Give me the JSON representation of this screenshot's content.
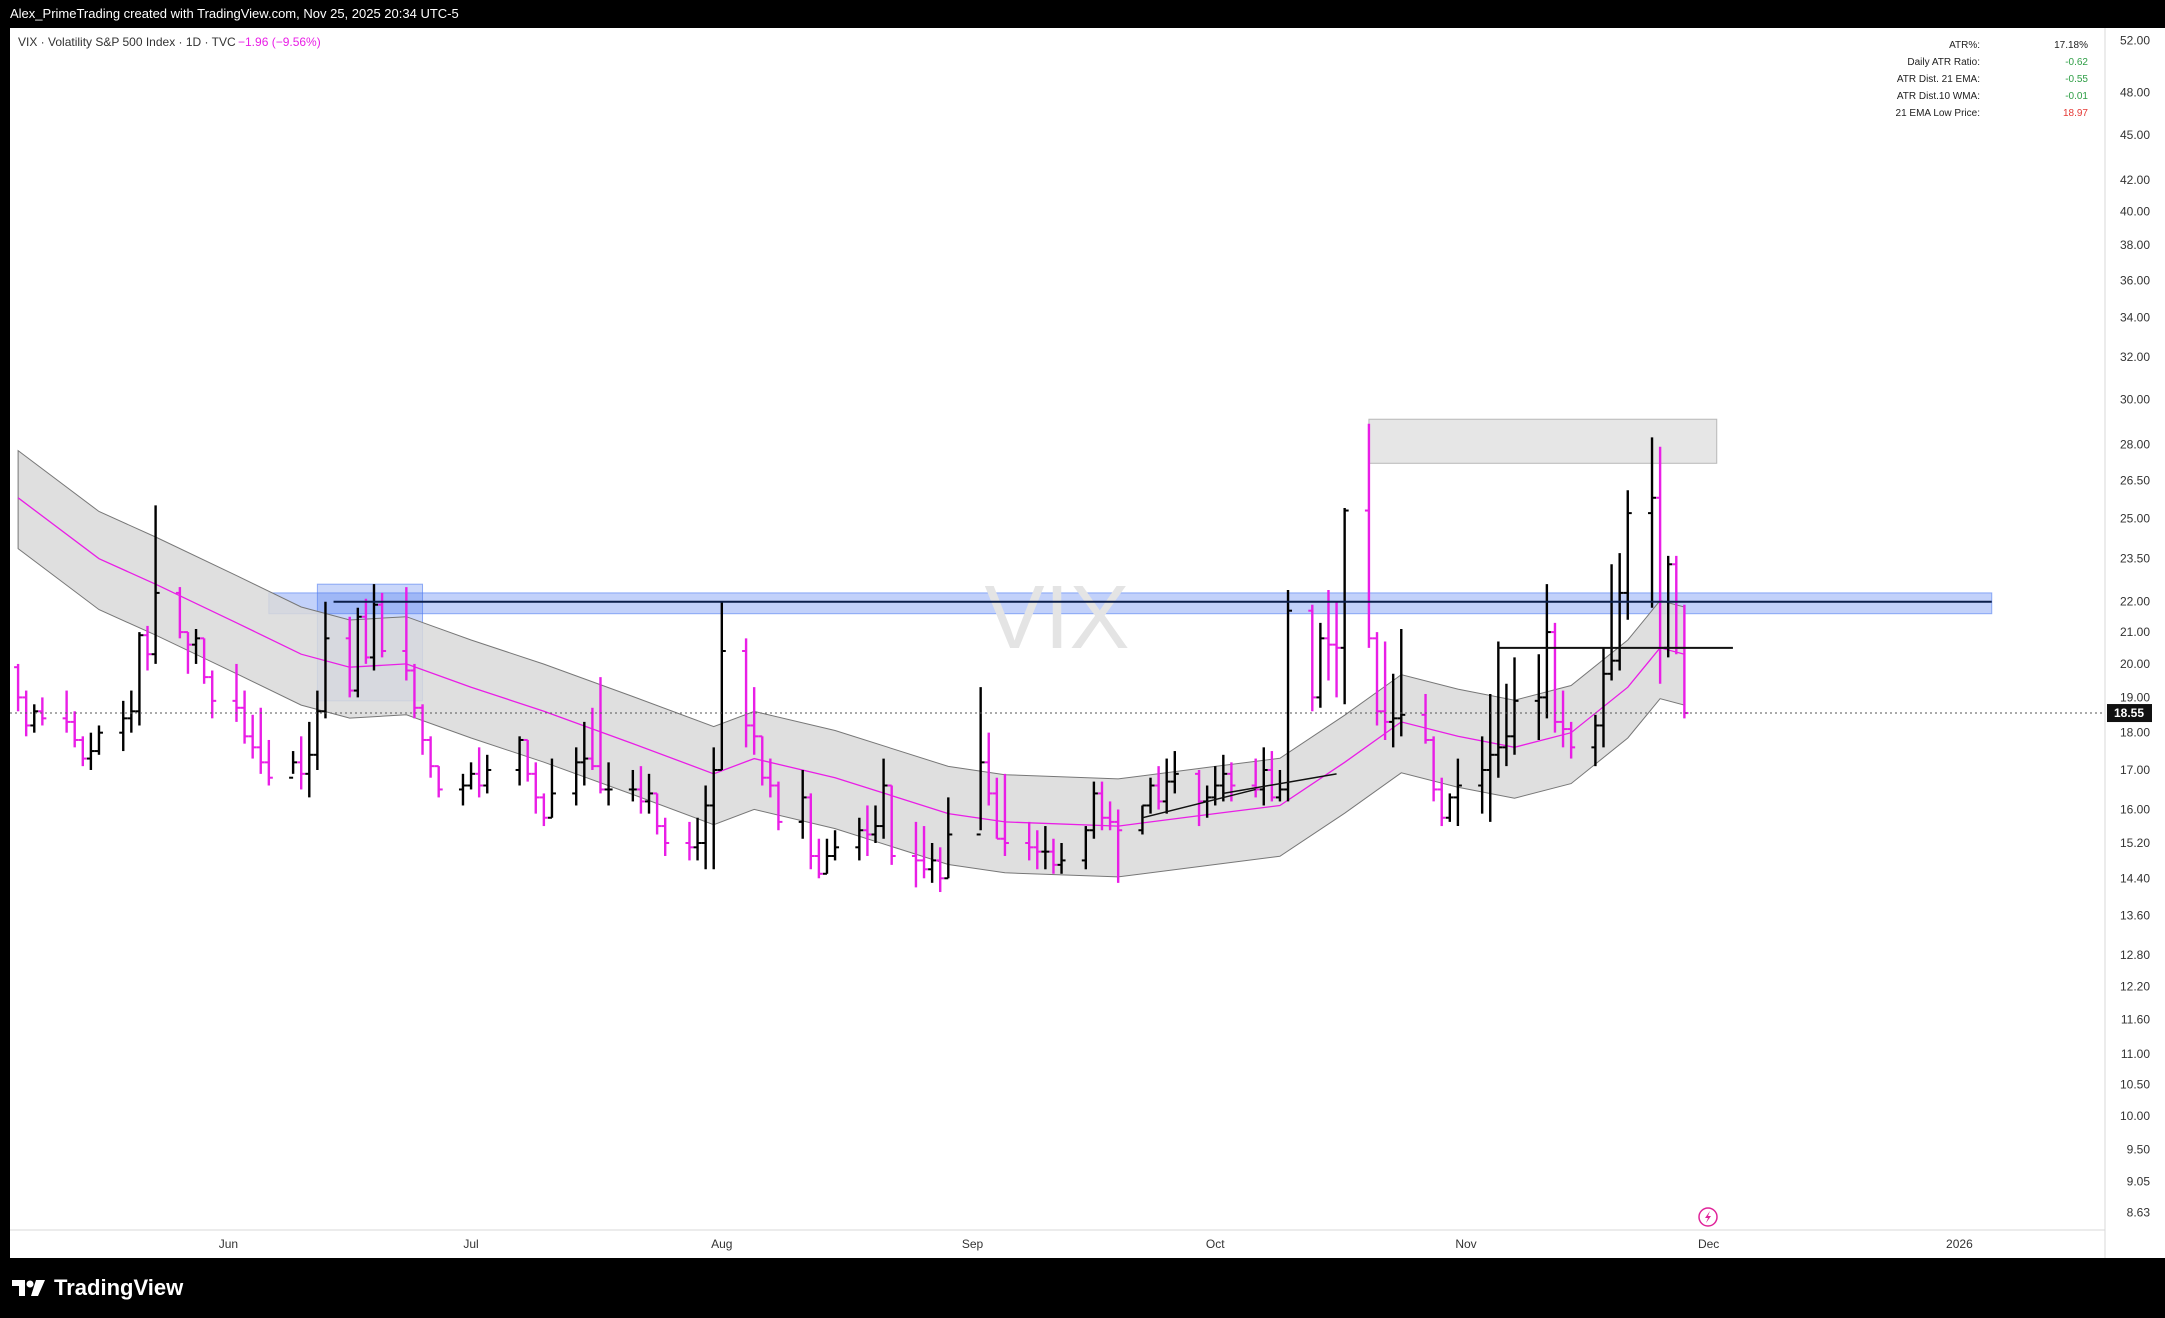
{
  "header": {
    "credit": "Alex_PrimeTrading created with TradingView.com, Nov 25, 2025 20:34 UTC-5"
  },
  "legend": {
    "symbol_line": "VIX · Volatility S&P 500 Index · 1D · TVC",
    "change": "−1.96 (−9.56%)"
  },
  "watermark": "VIX",
  "stats": [
    {
      "label": "ATR%:",
      "value": "17.18%",
      "color": "#222222"
    },
    {
      "label": "Daily ATR Ratio:",
      "value": "-0.62",
      "color": "#2e9e45"
    },
    {
      "label": "ATR Dist. 21 EMA:",
      "value": "-0.55",
      "color": "#2e9e45"
    },
    {
      "label": "ATR Dist.10 WMA:",
      "value": "-0.01",
      "color": "#2e9e45"
    },
    {
      "label": "21 EMA Low Price:",
      "value": "18.97",
      "color": "#e53935"
    }
  ],
  "brand": {
    "name": "TradingView",
    "logo_icon": "tradingview-logo-icon"
  },
  "colors": {
    "bull": "#000000",
    "bear": "#e91ee6",
    "ema": "#e91ee6",
    "band": "#d9d9d9",
    "zone_blue": "#4f7bf0",
    "zone_gray": "#cfcfcf"
  },
  "chart_data": {
    "type": "ohlc",
    "y_scale": "log",
    "ylim": [
      8.4,
      53
    ],
    "y_ticks": [
      "52.00",
      "48.00",
      "45.00",
      "42.00",
      "40.00",
      "38.00",
      "36.00",
      "34.00",
      "32.00",
      "30.00",
      "28.00",
      "26.50",
      "25.00",
      "23.50",
      "22.00",
      "21.00",
      "20.00",
      "19.00",
      "18.00",
      "17.00",
      "16.00",
      "15.20",
      "14.40",
      "13.60",
      "12.80",
      "12.20",
      "11.60",
      "11.00",
      "10.50",
      "10.00",
      "9.50",
      "9.05",
      "8.63"
    ],
    "x_ticks": [
      {
        "date": "2025-06-01",
        "label": "Jun"
      },
      {
        "date": "2025-07-01",
        "label": "Jul"
      },
      {
        "date": "2025-08-01",
        "label": "Aug"
      },
      {
        "date": "2025-09-01",
        "label": "Sep"
      },
      {
        "date": "2025-10-01",
        "label": "Oct"
      },
      {
        "date": "2025-11-01",
        "label": "Nov"
      },
      {
        "date": "2025-12-01",
        "label": "Dec"
      },
      {
        "date": "2026-01-01",
        "label": "2026"
      }
    ],
    "xlim": [
      "2025-05-05",
      "2026-01-19"
    ],
    "last_price": 18.55,
    "last_price_label": "18.55",
    "bars": [
      [
        "2025-05-06",
        19.9,
        20.0,
        18.6,
        19.0
      ],
      [
        "2025-05-07",
        19.0,
        19.2,
        17.9,
        18.2
      ],
      [
        "2025-05-08",
        18.2,
        18.8,
        18.0,
        18.6
      ],
      [
        "2025-05-09",
        18.6,
        19.0,
        18.2,
        18.4
      ],
      [
        "2025-05-12",
        18.4,
        19.2,
        18.0,
        18.3
      ],
      [
        "2025-05-13",
        18.3,
        18.6,
        17.6,
        17.8
      ],
      [
        "2025-05-14",
        17.8,
        17.9,
        17.1,
        17.3
      ],
      [
        "2025-05-15",
        17.3,
        18.0,
        17.0,
        17.5
      ],
      [
        "2025-05-16",
        17.5,
        18.2,
        17.4,
        18.0
      ],
      [
        "2025-05-19",
        18.0,
        18.9,
        17.5,
        18.4
      ],
      [
        "2025-05-20",
        18.4,
        19.2,
        18.0,
        18.6
      ],
      [
        "2025-05-21",
        18.6,
        21.0,
        18.2,
        20.9
      ],
      [
        "2025-05-22",
        20.9,
        21.2,
        19.8,
        20.3
      ],
      [
        "2025-05-23",
        20.3,
        25.5,
        20.0,
        22.3
      ],
      [
        "2025-05-26",
        22.3,
        22.5,
        20.8,
        21.0
      ],
      [
        "2025-05-27",
        21.0,
        21.0,
        19.7,
        20.6
      ],
      [
        "2025-05-28",
        20.6,
        21.1,
        20.0,
        20.8
      ],
      [
        "2025-05-29",
        20.8,
        20.8,
        19.4,
        19.6
      ],
      [
        "2025-05-30",
        19.6,
        19.8,
        18.4,
        18.9
      ],
      [
        "2025-06-02",
        18.9,
        20.0,
        18.3,
        18.7
      ],
      [
        "2025-06-03",
        18.7,
        19.2,
        17.7,
        17.9
      ],
      [
        "2025-06-04",
        17.9,
        18.5,
        17.3,
        17.6
      ],
      [
        "2025-06-05",
        17.6,
        18.7,
        16.9,
        17.2
      ],
      [
        "2025-06-06",
        17.2,
        17.8,
        16.6,
        16.8
      ],
      [
        "2025-06-09",
        16.8,
        17.5,
        16.9,
        17.2
      ],
      [
        "2025-06-10",
        17.2,
        17.9,
        16.5,
        16.9
      ],
      [
        "2025-06-11",
        16.9,
        18.3,
        16.3,
        17.4
      ],
      [
        "2025-06-12",
        17.4,
        19.2,
        17.0,
        18.6
      ],
      [
        "2025-06-13",
        18.6,
        22.0,
        18.4,
        20.8
      ],
      [
        "2025-06-16",
        20.8,
        21.5,
        19.0,
        19.2
      ],
      [
        "2025-06-17",
        19.2,
        21.8,
        19.0,
        21.5
      ],
      [
        "2025-06-18",
        21.5,
        22.1,
        20.0,
        20.2
      ],
      [
        "2025-06-19",
        20.2,
        22.6,
        19.8,
        21.9
      ],
      [
        "2025-06-20",
        21.9,
        22.3,
        20.2,
        20.4
      ],
      [
        "2025-06-23",
        20.4,
        22.5,
        19.5,
        19.8
      ],
      [
        "2025-06-24",
        19.8,
        20.0,
        18.4,
        18.7
      ],
      [
        "2025-06-25",
        18.7,
        18.8,
        17.4,
        17.8
      ],
      [
        "2025-06-26",
        17.8,
        17.9,
        16.8,
        17.1
      ],
      [
        "2025-06-27",
        17.1,
        17.1,
        16.3,
        16.5
      ],
      [
        "2025-06-30",
        16.5,
        16.9,
        16.1,
        16.6
      ],
      [
        "2025-07-01",
        16.6,
        17.2,
        16.5,
        16.9
      ],
      [
        "2025-07-02",
        16.9,
        17.6,
        16.3,
        16.6
      ],
      [
        "2025-07-03",
        16.6,
        17.4,
        16.4,
        17.0
      ],
      [
        "2025-07-07",
        17.0,
        17.9,
        16.6,
        17.8
      ],
      [
        "2025-07-08",
        17.8,
        17.8,
        16.7,
        16.9
      ],
      [
        "2025-07-09",
        16.9,
        17.2,
        15.9,
        16.3
      ],
      [
        "2025-07-10",
        16.3,
        16.4,
        15.6,
        15.8
      ],
      [
        "2025-07-11",
        15.8,
        17.3,
        15.8,
        16.4
      ],
      [
        "2025-07-14",
        16.4,
        17.6,
        16.1,
        17.2
      ],
      [
        "2025-07-15",
        17.2,
        18.3,
        16.6,
        17.3
      ],
      [
        "2025-07-16",
        17.3,
        18.7,
        17.0,
        17.1
      ],
      [
        "2025-07-17",
        17.1,
        19.6,
        16.4,
        16.5
      ],
      [
        "2025-07-18",
        16.5,
        17.2,
        16.1,
        16.5
      ],
      [
        "2025-07-21",
        16.5,
        17.0,
        16.2,
        16.5
      ],
      [
        "2025-07-22",
        16.5,
        17.1,
        15.9,
        16.2
      ],
      [
        "2025-07-23",
        16.2,
        16.9,
        15.9,
        16.4
      ],
      [
        "2025-07-24",
        16.4,
        16.4,
        15.4,
        15.6
      ],
      [
        "2025-07-25",
        15.6,
        15.8,
        14.9,
        15.2
      ],
      [
        "2025-07-28",
        15.2,
        15.7,
        14.8,
        15.1
      ],
      [
        "2025-07-29",
        15.1,
        15.8,
        14.8,
        15.2
      ],
      [
        "2025-07-30",
        15.2,
        16.6,
        14.6,
        16.1
      ],
      [
        "2025-07-31",
        16.1,
        17.6,
        14.6,
        17.0
      ],
      [
        "2025-08-01",
        17.0,
        22.0,
        17.0,
        20.4
      ],
      [
        "2025-08-04",
        20.4,
        20.8,
        17.6,
        18.2
      ],
      [
        "2025-08-05",
        18.2,
        19.3,
        17.4,
        17.9
      ],
      [
        "2025-08-06",
        17.9,
        17.9,
        16.6,
        16.8
      ],
      [
        "2025-08-07",
        16.8,
        17.3,
        16.3,
        16.6
      ],
      [
        "2025-08-08",
        16.6,
        16.7,
        15.5,
        15.7
      ],
      [
        "2025-08-11",
        15.7,
        17.0,
        15.3,
        16.3
      ],
      [
        "2025-08-12",
        16.3,
        16.4,
        14.6,
        14.9
      ],
      [
        "2025-08-13",
        14.9,
        15.3,
        14.4,
        14.5
      ],
      [
        "2025-08-14",
        14.5,
        15.3,
        14.5,
        14.9
      ],
      [
        "2025-08-15",
        14.9,
        15.5,
        14.8,
        15.1
      ],
      [
        "2025-08-18",
        15.1,
        15.8,
        14.8,
        15.5
      ],
      [
        "2025-08-19",
        15.5,
        16.1,
        14.9,
        15.4
      ],
      [
        "2025-08-20",
        15.4,
        16.1,
        15.2,
        15.6
      ],
      [
        "2025-08-21",
        15.6,
        17.3,
        15.3,
        16.6
      ],
      [
        "2025-08-22",
        16.6,
        16.6,
        14.7,
        14.9
      ],
      [
        "2025-08-25",
        14.9,
        15.7,
        14.2,
        14.8
      ],
      [
        "2025-08-26",
        14.8,
        15.6,
        14.4,
        14.6
      ],
      [
        "2025-08-27",
        14.6,
        15.2,
        14.3,
        14.8
      ],
      [
        "2025-08-28",
        14.8,
        15.1,
        14.1,
        14.4
      ],
      [
        "2025-08-29",
        14.4,
        16.3,
        14.4,
        15.4
      ],
      [
        "2025-09-02",
        15.4,
        19.3,
        15.5,
        17.2
      ],
      [
        "2025-09-03",
        17.2,
        18.0,
        16.1,
        16.4
      ],
      [
        "2025-09-04",
        16.4,
        16.8,
        15.3,
        15.3
      ],
      [
        "2025-09-05",
        15.3,
        16.9,
        14.9,
        15.2
      ],
      [
        "2025-09-08",
        15.2,
        15.7,
        14.8,
        15.1
      ],
      [
        "2025-09-09",
        15.1,
        15.5,
        14.6,
        15.0
      ],
      [
        "2025-09-10",
        15.0,
        15.6,
        14.6,
        15.0
      ],
      [
        "2025-09-11",
        15.0,
        15.3,
        14.5,
        14.7
      ],
      [
        "2025-09-12",
        14.7,
        15.2,
        14.5,
        14.8
      ],
      [
        "2025-09-15",
        14.8,
        15.6,
        14.6,
        15.5
      ],
      [
        "2025-09-16",
        15.5,
        16.7,
        15.3,
        16.4
      ],
      [
        "2025-09-17",
        16.4,
        16.7,
        15.5,
        15.8
      ],
      [
        "2025-09-18",
        15.8,
        16.2,
        15.5,
        15.7
      ],
      [
        "2025-09-19",
        15.7,
        16.0,
        14.3,
        15.5
      ],
      [
        "2025-09-22",
        15.5,
        16.1,
        15.4,
        16.1
      ],
      [
        "2025-09-23",
        16.1,
        16.8,
        15.9,
        16.6
      ],
      [
        "2025-09-24",
        16.6,
        17.1,
        16.0,
        16.2
      ],
      [
        "2025-09-25",
        16.2,
        17.3,
        15.9,
        16.7
      ],
      [
        "2025-09-26",
        16.7,
        17.5,
        16.4,
        16.9
      ],
      [
        "2025-09-29",
        16.9,
        17.0,
        15.6,
        16.2
      ],
      [
        "2025-09-30",
        16.2,
        16.6,
        15.8,
        16.3
      ],
      [
        "2025-10-01",
        16.3,
        17.1,
        16.1,
        16.6
      ],
      [
        "2025-10-02",
        16.6,
        17.4,
        16.2,
        16.9
      ],
      [
        "2025-10-03",
        16.9,
        17.2,
        16.2,
        16.6
      ],
      [
        "2025-10-06",
        16.6,
        17.3,
        16.3,
        16.5
      ],
      [
        "2025-10-07",
        16.5,
        17.6,
        16.1,
        17.0
      ],
      [
        "2025-10-08",
        17.0,
        17.5,
        16.2,
        16.3
      ],
      [
        "2025-10-09",
        16.3,
        17.0,
        16.2,
        16.5
      ],
      [
        "2025-10-10",
        16.5,
        22.4,
        16.2,
        21.7
      ],
      [
        "2025-10-13",
        21.7,
        21.9,
        18.6,
        19.0
      ],
      [
        "2025-10-14",
        19.0,
        21.3,
        18.7,
        20.8
      ],
      [
        "2025-10-15",
        20.8,
        22.4,
        19.5,
        20.6
      ],
      [
        "2025-10-16",
        20.6,
        22.0,
        19.0,
        20.5
      ],
      [
        "2025-10-17",
        20.5,
        25.4,
        18.8,
        25.3
      ],
      [
        "2025-10-20",
        25.3,
        28.9,
        20.5,
        20.8
      ],
      [
        "2025-10-21",
        20.8,
        21.0,
        18.2,
        18.6
      ],
      [
        "2025-10-22",
        18.6,
        20.7,
        17.8,
        18.3
      ],
      [
        "2025-10-23",
        18.3,
        19.7,
        17.6,
        18.4
      ],
      [
        "2025-10-24",
        18.4,
        21.1,
        17.9,
        18.5
      ],
      [
        "2025-10-27",
        18.5,
        19.1,
        17.7,
        17.8
      ],
      [
        "2025-10-28",
        17.8,
        17.9,
        16.2,
        16.5
      ],
      [
        "2025-10-29",
        16.5,
        16.8,
        15.6,
        15.8
      ],
      [
        "2025-10-30",
        15.8,
        16.4,
        15.7,
        16.3
      ],
      [
        "2025-10-31",
        16.3,
        17.3,
        15.6,
        16.6
      ],
      [
        "2025-11-03",
        16.6,
        17.9,
        15.9,
        17.0
      ],
      [
        "2025-11-04",
        17.0,
        19.1,
        15.7,
        17.4
      ],
      [
        "2025-11-05",
        17.4,
        20.7,
        16.8,
        17.6
      ],
      [
        "2025-11-06",
        17.6,
        19.4,
        17.1,
        17.9
      ],
      [
        "2025-11-07",
        17.9,
        20.2,
        17.4,
        18.9
      ],
      [
        "2025-11-10",
        18.9,
        20.3,
        17.8,
        19.0
      ],
      [
        "2025-11-11",
        19.0,
        22.6,
        18.4,
        21.0
      ],
      [
        "2025-11-12",
        21.0,
        21.3,
        18.0,
        18.3
      ],
      [
        "2025-11-13",
        18.3,
        19.2,
        17.6,
        18.1
      ],
      [
        "2025-11-14",
        18.1,
        18.3,
        17.3,
        17.6
      ],
      [
        "2025-11-17",
        17.6,
        18.5,
        17.1,
        18.2
      ],
      [
        "2025-11-18",
        18.2,
        20.5,
        17.6,
        19.7
      ],
      [
        "2025-11-19",
        19.7,
        23.3,
        19.5,
        20.1
      ],
      [
        "2025-11-20",
        20.1,
        23.7,
        19.8,
        22.3
      ],
      [
        "2025-11-21",
        22.3,
        26.1,
        21.4,
        25.2
      ],
      [
        "2025-11-24",
        25.2,
        28.3,
        21.8,
        25.8
      ],
      [
        "2025-11-25",
        25.8,
        27.9,
        19.4,
        20.5
      ],
      [
        "2025-11-26",
        20.5,
        23.6,
        20.2,
        23.3
      ],
      [
        "2025-11-27",
        23.3,
        23.6,
        20.3,
        20.5
      ],
      [
        "2025-11-28",
        20.5,
        21.9,
        18.4,
        18.55
      ]
    ],
    "ema_points": [
      [
        "2025-05-06",
        25.8
      ],
      [
        "2025-05-16",
        23.5
      ],
      [
        "2025-05-23",
        22.6
      ],
      [
        "2025-06-02",
        21.3
      ],
      [
        "2025-06-10",
        20.3
      ],
      [
        "2025-06-16",
        19.9
      ],
      [
        "2025-06-23",
        20.0
      ],
      [
        "2025-07-01",
        19.3
      ],
      [
        "2025-07-10",
        18.6
      ],
      [
        "2025-07-21",
        17.7
      ],
      [
        "2025-07-31",
        16.9
      ],
      [
        "2025-08-05",
        17.3
      ],
      [
        "2025-08-15",
        16.8
      ],
      [
        "2025-08-29",
        15.9
      ],
      [
        "2025-09-05",
        15.7
      ],
      [
        "2025-09-19",
        15.6
      ],
      [
        "2025-10-01",
        15.9
      ],
      [
        "2025-10-09",
        16.1
      ],
      [
        "2025-10-17",
        17.2
      ],
      [
        "2025-10-24",
        18.3
      ],
      [
        "2025-10-31",
        17.9
      ],
      [
        "2025-11-07",
        17.6
      ],
      [
        "2025-11-14",
        18.0
      ],
      [
        "2025-11-21",
        19.3
      ],
      [
        "2025-11-25",
        20.5
      ],
      [
        "2025-11-28",
        20.3
      ]
    ],
    "band_halfwidth": 0.075,
    "annotations": {
      "blue_zone": {
        "y_top": 22.3,
        "y_bottom": 21.6,
        "x_start": "2025-06-06",
        "x_end": "2026-01-05"
      },
      "blue_level": {
        "y": 22.0,
        "x_start": "2025-06-14",
        "x_end": "2026-01-05"
      },
      "blue_box": {
        "y_top": 22.6,
        "y_bottom": 18.9,
        "x_start": "2025-06-12",
        "x_end": "2025-06-25"
      },
      "gray_zone": {
        "y_top": 29.1,
        "y_bottom": 27.2,
        "x_start": "2025-10-20",
        "x_end": "2025-12-02"
      },
      "black_level": {
        "y": 20.5,
        "x_start": "2025-11-05",
        "x_end": "2025-12-04"
      },
      "trendlines": [
        {
          "start": [
            "2025-09-22",
            15.8
          ],
          "end": [
            "2025-10-06",
            16.5
          ]
        },
        {
          "start": [
            "2025-10-02",
            16.4
          ],
          "end": [
            "2025-10-16",
            16.9
          ]
        }
      ]
    }
  }
}
